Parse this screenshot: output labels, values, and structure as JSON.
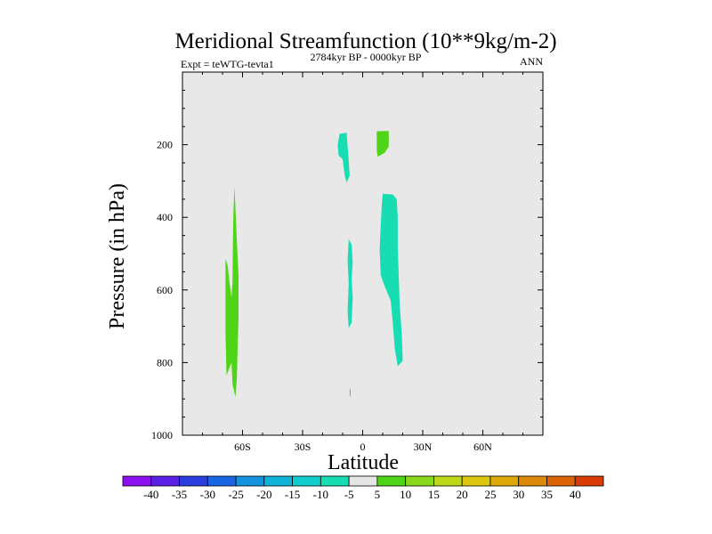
{
  "chart_data": {
    "type": "contour",
    "title": "Meridional Streamfunction (10**9kg/m-2)",
    "subtitle_left": "Expt = teWTG-tevta1",
    "subtitle_center": "2784kyr BP - 0000kyr BP",
    "subtitle_right": "ANN",
    "xlabel": "Latitude",
    "ylabel": "Pressure (in hPa)",
    "xlim": [
      -90,
      90
    ],
    "ylim": [
      1000,
      0
    ],
    "x_ticks": [
      {
        "value": -60,
        "label": "60S"
      },
      {
        "value": -30,
        "label": "30S"
      },
      {
        "value": 0,
        "label": "0"
      },
      {
        "value": 30,
        "label": "30N"
      },
      {
        "value": 60,
        "label": "60N"
      }
    ],
    "y_ticks": [
      {
        "value": 200,
        "label": "200"
      },
      {
        "value": 400,
        "label": "400"
      },
      {
        "value": 600,
        "label": "600"
      },
      {
        "value": 800,
        "label": "800"
      },
      {
        "value": 1000,
        "label": "1000"
      }
    ],
    "background_color": "#e8e8e8",
    "colorbar": {
      "levels": [
        -40,
        -35,
        -30,
        -25,
        -20,
        -15,
        -10,
        -5,
        5,
        10,
        15,
        20,
        25,
        30,
        35,
        40
      ],
      "labels": [
        "-40",
        "-35",
        "-30",
        "-25",
        "-20",
        "-15",
        "-10",
        "-5",
        "5",
        "10",
        "15",
        "20",
        "25",
        "30",
        "35",
        "40"
      ],
      "colors": [
        "#8c10f0",
        "#5a20e6",
        "#2a3cdc",
        "#1866e4",
        "#1292dc",
        "#0eb2d4",
        "#10cccc",
        "#18dcb2",
        "#e6e6e6",
        "#50d418",
        "#8ad81a",
        "#bcd818",
        "#dcc810",
        "#dca808",
        "#dc8808",
        "#dc6406",
        "#d83c04"
      ]
    },
    "regions": [
      {
        "label": "-10 to -5",
        "color": "#18dcb2",
        "points": [
          [
            -11.5,
            170
          ],
          [
            -8,
            167
          ],
          [
            -7.5,
            205
          ],
          [
            -7,
            245
          ],
          [
            -6.5,
            285
          ],
          [
            -8,
            305
          ],
          [
            -9,
            285
          ],
          [
            -10,
            240
          ],
          [
            -12,
            230
          ],
          [
            -12.5,
            200
          ]
        ]
      },
      {
        "label": "-10 to -5",
        "color": "#18dcb2",
        "points": [
          [
            -7,
            460
          ],
          [
            -5.5,
            475
          ],
          [
            -5,
            525
          ],
          [
            -5.5,
            570
          ],
          [
            -5,
            620
          ],
          [
            -5.5,
            690
          ],
          [
            -7,
            705
          ],
          [
            -7.5,
            660
          ],
          [
            -7,
            580
          ],
          [
            -7.5,
            520
          ]
        ]
      },
      {
        "label": "-10 to -5",
        "color": "#18dcb2",
        "points": [
          [
            10,
            335
          ],
          [
            15,
            337
          ],
          [
            17,
            350
          ],
          [
            17.5,
            400
          ],
          [
            17.5,
            480
          ],
          [
            18,
            560
          ],
          [
            18.5,
            640
          ],
          [
            19.5,
            720
          ],
          [
            20,
            795
          ],
          [
            17.5,
            810
          ],
          [
            16,
            760
          ],
          [
            15,
            690
          ],
          [
            14,
            630
          ],
          [
            11,
            590
          ],
          [
            9,
            560
          ],
          [
            8.5,
            490
          ],
          [
            9,
            420
          ],
          [
            9.5,
            370
          ]
        ]
      },
      {
        "label": "-10 to -5",
        "color": "#18dcb2",
        "points": [
          [
            -6.5,
            870
          ],
          [
            -6,
            875
          ],
          [
            -6,
            895
          ],
          [
            -6.5,
            890
          ]
        ]
      },
      {
        "label": "5 to 10",
        "color": "#50d418",
        "points": [
          [
            7,
            163
          ],
          [
            13,
            162
          ],
          [
            13,
            205
          ],
          [
            11,
            222
          ],
          [
            7.5,
            233
          ],
          [
            7,
            215
          ]
        ]
      },
      {
        "label": "5 to 10",
        "color": "#50d418",
        "points": [
          [
            -68.5,
            515
          ],
          [
            -67.5,
            530
          ],
          [
            -66.5,
            580
          ],
          [
            -65.5,
            620
          ],
          [
            -65,
            580
          ],
          [
            -64.8,
            470
          ],
          [
            -64.5,
            380
          ],
          [
            -64,
            315
          ],
          [
            -62.8,
            470
          ],
          [
            -62,
            560
          ],
          [
            -62,
            680
          ],
          [
            -62.5,
            765
          ],
          [
            -62.8,
            840
          ],
          [
            -63.5,
            895
          ],
          [
            -65,
            860
          ],
          [
            -65.5,
            800
          ],
          [
            -68,
            835
          ],
          [
            -68.5,
            720
          ]
        ]
      }
    ]
  }
}
